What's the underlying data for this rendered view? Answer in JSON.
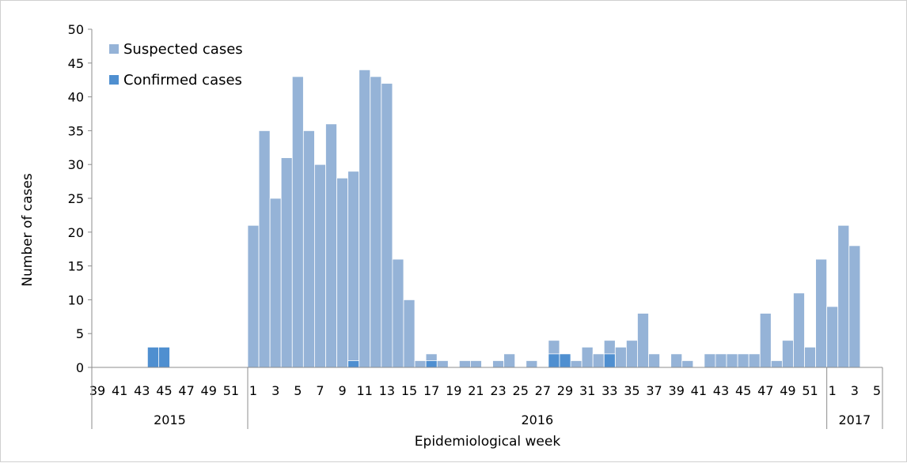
{
  "chart_data": {
    "type": "bar",
    "xlabel": "Epidemiological week",
    "ylabel": "Number of cases",
    "ylim": [
      0,
      50
    ],
    "yticks": [
      0,
      5,
      10,
      15,
      20,
      25,
      30,
      35,
      40,
      45,
      50
    ],
    "stacked": false,
    "legend_position": "top-left",
    "grid": false,
    "years": [
      {
        "label": "2015",
        "weeks": 14
      },
      {
        "label": "2016",
        "weeks": 52
      },
      {
        "label": "2017",
        "weeks": 5
      }
    ],
    "categories": [
      "39",
      "40",
      "41",
      "42",
      "43",
      "44",
      "45",
      "46",
      "47",
      "48",
      "49",
      "50",
      "51",
      "52",
      "1",
      "2",
      "3",
      "4",
      "5",
      "6",
      "7",
      "8",
      "9",
      "10",
      "11",
      "12",
      "13",
      "14",
      "15",
      "16",
      "17",
      "18",
      "19",
      "20",
      "21",
      "22",
      "23",
      "24",
      "25",
      "26",
      "27",
      "28",
      "29",
      "30",
      "31",
      "32",
      "33",
      "34",
      "35",
      "36",
      "37",
      "38",
      "39",
      "40",
      "41",
      "42",
      "43",
      "44",
      "45",
      "46",
      "47",
      "48",
      "49",
      "50",
      "51",
      "52",
      "1",
      "2",
      "3",
      "4",
      "5"
    ],
    "tick_labels": [
      "39",
      "",
      "41",
      "",
      "43",
      "",
      "45",
      "",
      "47",
      "",
      "49",
      "",
      "51",
      "",
      "1",
      "",
      "3",
      "",
      "5",
      "",
      "7",
      "",
      "9",
      "",
      "11",
      "",
      "13",
      "",
      "15",
      "",
      "17",
      "",
      "19",
      "",
      "21",
      "",
      "23",
      "",
      "25",
      "",
      "27",
      "",
      "29",
      "",
      "31",
      "",
      "33",
      "",
      "35",
      "",
      "37",
      "",
      "39",
      "",
      "41",
      "",
      "43",
      "",
      "45",
      "",
      "47",
      "",
      "49",
      "",
      "51",
      "",
      "1",
      "",
      "3",
      "",
      "5"
    ],
    "series": [
      {
        "name": "Suspected cases",
        "color": "#95b3d7",
        "values": [
          0,
          0,
          0,
          0,
          0,
          3,
          3,
          0,
          0,
          0,
          0,
          0,
          0,
          0,
          21,
          35,
          25,
          31,
          43,
          35,
          30,
          36,
          28,
          29,
          44,
          43,
          42,
          16,
          10,
          1,
          2,
          1,
          0,
          1,
          1,
          0,
          1,
          2,
          0,
          1,
          0,
          4,
          2,
          1,
          3,
          2,
          4,
          3,
          4,
          8,
          2,
          0,
          2,
          1,
          0,
          2,
          2,
          2,
          2,
          2,
          8,
          1,
          4,
          11,
          3,
          16,
          9,
          21,
          18,
          0,
          0
        ]
      },
      {
        "name": "Confirmed cases",
        "color": "#4f8fd0",
        "values": [
          0,
          0,
          0,
          0,
          0,
          3,
          3,
          0,
          0,
          0,
          0,
          0,
          0,
          0,
          0,
          0,
          0,
          0,
          0,
          0,
          0,
          0,
          0,
          1,
          0,
          0,
          0,
          0,
          0,
          0,
          1,
          0,
          0,
          0,
          0,
          0,
          0,
          0,
          0,
          0,
          0,
          2,
          2,
          0,
          0,
          0,
          2,
          0,
          0,
          0,
          0,
          0,
          0,
          0,
          0,
          0,
          0,
          0,
          0,
          0,
          0,
          0,
          0,
          0,
          0,
          0,
          0,
          0,
          0,
          0,
          0
        ]
      }
    ]
  }
}
